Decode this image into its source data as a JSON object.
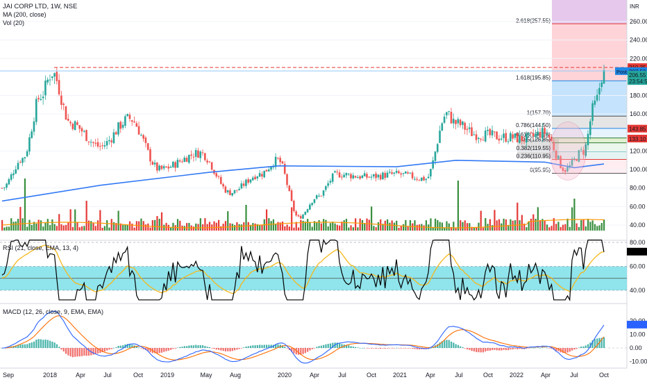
{
  "header": {
    "title": "JAI CORP LTD, 1W, NSE",
    "ma_label": "MA (200, close)",
    "vol_label": "Vol (20)",
    "rsi_label": "RSI (21, close, EMA, 13, 4)",
    "macd_label": "MACD (12, 26, close, 9, EMA, EMA)"
  },
  "colors": {
    "up": "#26a69a",
    "down": "#ef5350",
    "ma": "#3179f5",
    "vol_up": "#388e3c",
    "vol_down": "#e53935",
    "vol_ma": "#ff9800",
    "rsi": "#000000",
    "rsi_ma": "#f5b81c",
    "rsi_band": "#7ddfe8",
    "macd": "#2962ff",
    "signal": "#ff6d00",
    "resistance": "#e53935"
  },
  "price_axis": {
    "unit": "INR",
    "ticks": [
      "260.00",
      "240.00",
      "220.00",
      "180.00",
      "160.00",
      "120.00",
      "100.00",
      "80.00",
      "60.00",
      "40.00"
    ]
  },
  "price_tags": [
    {
      "text": "210.35",
      "color": "#e53935"
    },
    {
      "text": "207.50",
      "color": "#1e88e5"
    },
    {
      "text": "206.55",
      "color": "#26a69a"
    },
    {
      "text": "23:54:53",
      "color": "#26a69a"
    },
    {
      "text": "143.85",
      "color": "#e53935"
    },
    {
      "text": "133.10",
      "color": "#e53935"
    }
  ],
  "post_label": "Post",
  "fib_labels": [
    {
      "level": 2.618,
      "text": "2.618(257.55)",
      "color": "#e53935"
    },
    {
      "level": 1.618,
      "text": "1.618(195.85)",
      "color": "#1e88e5"
    },
    {
      "level": 1,
      "text": "1(157.70)",
      "color": "#555555"
    },
    {
      "level": 0.786,
      "text": "0.786(144.50)",
      "color": "#1e88e5"
    },
    {
      "level": 0.618,
      "text": "0.618(134.10)",
      "color": "#2e7d32"
    },
    {
      "level": 0.5,
      "text": "0.5(128.85)",
      "color": "#2e7d32"
    },
    {
      "level": 0.382,
      "text": "0.382(119.55)",
      "color": "#26a69a"
    },
    {
      "level": 0.236,
      "text": "0.236(110.95)",
      "color": "#e53935"
    },
    {
      "level": 0,
      "text": "0(95.95)",
      "color": "#555555"
    }
  ],
  "rsi_axis": {
    "ticks": [
      "80.00",
      "60.00",
      "40.00"
    ]
  },
  "macd_axis": {
    "ticks": [
      "20.00",
      "10.00",
      "0.00",
      "-10.00"
    ]
  },
  "time_axis": [
    "Sep",
    "2018",
    "Apr",
    "Jul",
    "Oct",
    "2019",
    "May",
    "Aug",
    "2020",
    "Apr",
    "Jul",
    "Oct",
    "2021",
    "Apr",
    "Jul",
    "Oct",
    "2022",
    "Apr",
    "Jul",
    "Oct"
  ],
  "chart_data": {
    "type": "candlestick",
    "timeframe": "1W",
    "symbol": "JAI CORP LTD",
    "exchange": "NSE",
    "ylim": [
      28,
      290
    ],
    "close_series": {
      "x": [
        "2017-09",
        "2017-11",
        "2018-01",
        "2018-02",
        "2018-04",
        "2018-07",
        "2018-10",
        "2019-01",
        "2019-05",
        "2019-08",
        "2019-11",
        "2020-01",
        "2020-03",
        "2020-05",
        "2020-07",
        "2020-10",
        "2021-01",
        "2021-04",
        "2021-06",
        "2021-07",
        "2021-09",
        "2021-12",
        "2022-02",
        "2022-04",
        "2022-06",
        "2022-08",
        "2022-09",
        "2022-10"
      ],
      "close": [
        80,
        112,
        180,
        205,
        150,
        125,
        155,
        100,
        118,
        75,
        95,
        110,
        48,
        70,
        95,
        92,
        95,
        90,
        160,
        150,
        138,
        135,
        133,
        140,
        100,
        120,
        170,
        207.5
      ]
    },
    "ma200": {
      "x": [
        "2017-09",
        "2018-07",
        "2019-06",
        "2020-01",
        "2021-01",
        "2021-07",
        "2022-04",
        "2022-07",
        "2022-10"
      ],
      "values": [
        66,
        83,
        97,
        104,
        103,
        110,
        108,
        102,
        106
      ]
    },
    "resistance": 210.35,
    "rsi": {
      "levels": [
        80,
        60,
        40
      ],
      "latest": 72
    },
    "macd": {
      "latest_macd": 17,
      "latest_signal": 8
    }
  }
}
